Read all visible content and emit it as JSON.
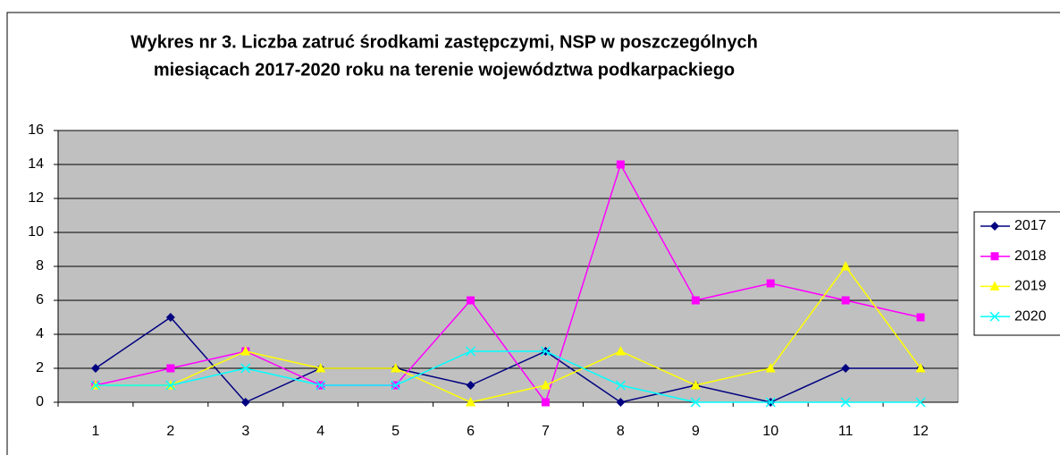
{
  "chart_data": {
    "type": "line",
    "title": [
      "Wykres nr 3. Liczba zatruć środkami zastępczymi, NSP w poszczególnych",
      "miesiącach 2017-2020 roku  na terenie województwa podkarpackiego"
    ],
    "categories": [
      "1",
      "2",
      "3",
      "4",
      "5",
      "6",
      "7",
      "8",
      "9",
      "10",
      "11",
      "12"
    ],
    "series": [
      {
        "name": "2017",
        "color": "#000080",
        "marker": "diamond",
        "values": [
          2,
          5,
          0,
          2,
          2,
          1,
          3,
          0,
          1,
          0,
          2,
          2
        ]
      },
      {
        "name": "2018",
        "color": "#ff00ff",
        "marker": "square",
        "values": [
          1,
          2,
          3,
          1,
          1,
          6,
          0,
          14,
          6,
          7,
          6,
          5
        ]
      },
      {
        "name": "2019",
        "color": "#ffff00",
        "marker": "triangle",
        "values": [
          1,
          1,
          3,
          2,
          2,
          0,
          1,
          3,
          1,
          2,
          8,
          2
        ]
      },
      {
        "name": "2020",
        "color": "#00ffff",
        "marker": "x",
        "values": [
          1,
          1,
          2,
          1,
          1,
          3,
          3,
          1,
          0,
          0,
          0,
          0
        ]
      }
    ],
    "ylim": [
      0,
      16
    ],
    "yticks": [
      0,
      2,
      4,
      6,
      8,
      10,
      12,
      14,
      16
    ],
    "grid": true,
    "legend": "right"
  }
}
